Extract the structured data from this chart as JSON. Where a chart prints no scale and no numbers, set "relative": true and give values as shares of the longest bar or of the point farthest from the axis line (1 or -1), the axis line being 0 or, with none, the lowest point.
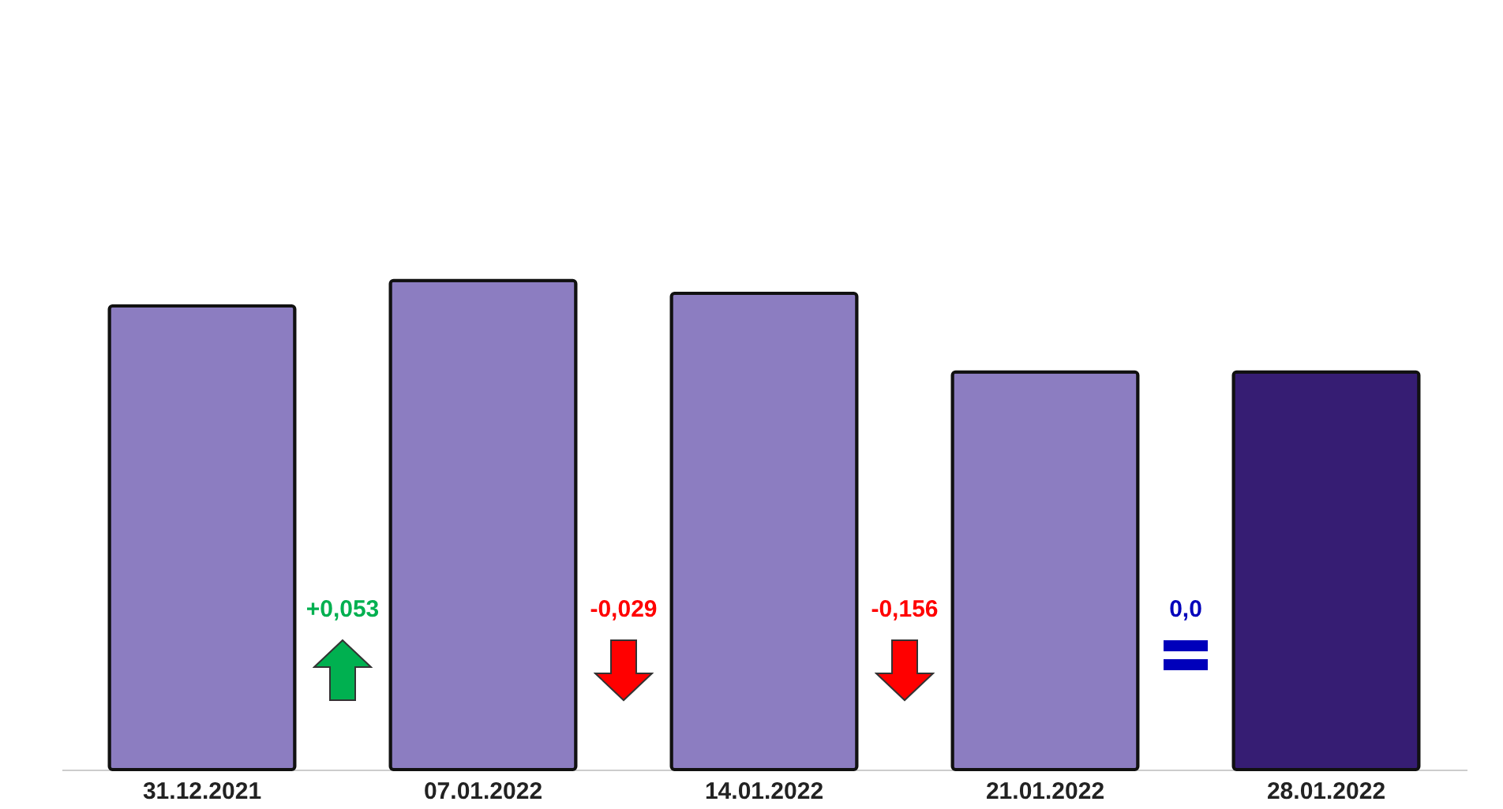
{
  "chart_data": {
    "type": "bar",
    "relative": true,
    "categories": [
      "31.12.2021",
      "07.01.2022",
      "14.01.2022",
      "21.01.2022",
      "28.01.2022"
    ],
    "values": [
      0.948,
      1,
      0.974,
      0.813,
      0.813
    ],
    "colors": [
      "#8c7dc1",
      "#8c7dc1",
      "#8c7dc1",
      "#8c7dc1",
      "#361d73"
    ],
    "annotations": [
      "+0,053",
      "-0,029",
      "-0,156",
      "0,0"
    ]
  }
}
